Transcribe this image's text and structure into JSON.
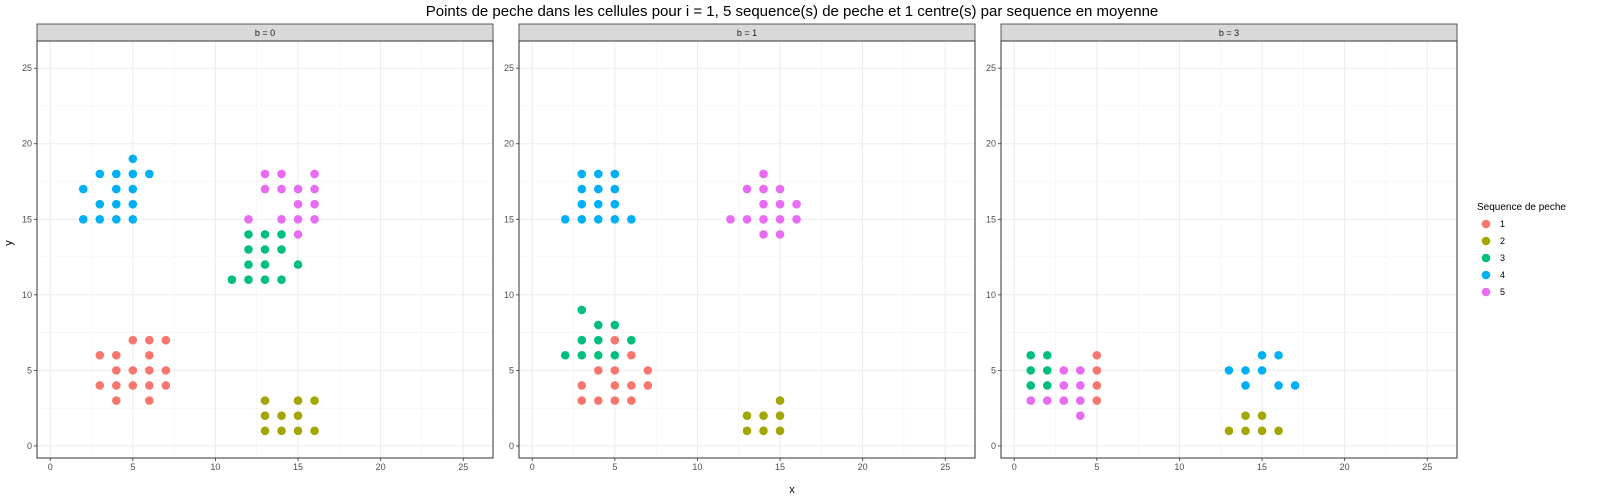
{
  "chart_data": {
    "type": "scatter",
    "title": "Points de peche dans les cellules pour i = 1, 5 sequence(s) de peche et 1 centre(s) par sequence en moyenne",
    "xlabel": "x",
    "ylabel": "y",
    "xlim": [
      -0.8,
      26.8
    ],
    "ylim": [
      -0.8,
      26.8
    ],
    "xticks": [
      0,
      5,
      10,
      15,
      20,
      25
    ],
    "yticks": [
      0,
      5,
      10,
      15,
      20,
      25
    ],
    "grid": true,
    "legend": {
      "title": "Sequence de peche",
      "placement": "right",
      "entries": [
        {
          "name": "1",
          "color": "#F8766D"
        },
        {
          "name": "2",
          "color": "#A3A500"
        },
        {
          "name": "3",
          "color": "#00BF7D"
        },
        {
          "name": "4",
          "color": "#00B0F6"
        },
        {
          "name": "5",
          "color": "#E76BF3"
        }
      ]
    },
    "panels": [
      {
        "label": "b = 0",
        "series": [
          {
            "name": "1",
            "points": [
              [
                3,
                6
              ],
              [
                4,
                6
              ],
              [
                5,
                7
              ],
              [
                6,
                7
              ],
              [
                7,
                7
              ],
              [
                6,
                6
              ],
              [
                4,
                5
              ],
              [
                5,
                5
              ],
              [
                6,
                5
              ],
              [
                7,
                5
              ],
              [
                3,
                4
              ],
              [
                4,
                4
              ],
              [
                5,
                4
              ],
              [
                6,
                4
              ],
              [
                7,
                4
              ],
              [
                4,
                3
              ],
              [
                6,
                3
              ]
            ]
          },
          {
            "name": "2",
            "points": [
              [
                13,
                3
              ],
              [
                15,
                3
              ],
              [
                16,
                3
              ],
              [
                13,
                2
              ],
              [
                14,
                2
              ],
              [
                15,
                2
              ],
              [
                13,
                1
              ],
              [
                14,
                1
              ],
              [
                15,
                1
              ],
              [
                16,
                1
              ]
            ]
          },
          {
            "name": "3",
            "points": [
              [
                12,
                14
              ],
              [
                13,
                14
              ],
              [
                14,
                14
              ],
              [
                12,
                13
              ],
              [
                13,
                13
              ],
              [
                14,
                13
              ],
              [
                12,
                12
              ],
              [
                13,
                12
              ],
              [
                15,
                12
              ],
              [
                11,
                11
              ],
              [
                12,
                11
              ],
              [
                13,
                11
              ],
              [
                14,
                11
              ]
            ]
          },
          {
            "name": "4",
            "points": [
              [
                5,
                19
              ],
              [
                3,
                18
              ],
              [
                4,
                18
              ],
              [
                5,
                18
              ],
              [
                6,
                18
              ],
              [
                2,
                17
              ],
              [
                4,
                17
              ],
              [
                5,
                17
              ],
              [
                3,
                16
              ],
              [
                4,
                16
              ],
              [
                5,
                16
              ],
              [
                2,
                15
              ],
              [
                3,
                15
              ],
              [
                4,
                15
              ],
              [
                5,
                15
              ]
            ]
          },
          {
            "name": "5",
            "points": [
              [
                13,
                18
              ],
              [
                14,
                18
              ],
              [
                16,
                18
              ],
              [
                13,
                17
              ],
              [
                14,
                17
              ],
              [
                15,
                17
              ],
              [
                16,
                17
              ],
              [
                15,
                16
              ],
              [
                16,
                16
              ],
              [
                12,
                15
              ],
              [
                14,
                15
              ],
              [
                15,
                15
              ],
              [
                16,
                15
              ],
              [
                15,
                14
              ]
            ]
          }
        ]
      },
      {
        "label": "b = 1",
        "series": [
          {
            "name": "1",
            "points": [
              [
                5,
                7
              ],
              [
                6,
                6
              ],
              [
                4,
                5
              ],
              [
                5,
                5
              ],
              [
                7,
                5
              ],
              [
                3,
                4
              ],
              [
                5,
                4
              ],
              [
                6,
                4
              ],
              [
                7,
                4
              ],
              [
                3,
                3
              ],
              [
                4,
                3
              ],
              [
                5,
                3
              ],
              [
                6,
                3
              ]
            ]
          },
          {
            "name": "2",
            "points": [
              [
                15,
                3
              ],
              [
                13,
                2
              ],
              [
                14,
                2
              ],
              [
                15,
                2
              ],
              [
                13,
                1
              ],
              [
                14,
                1
              ],
              [
                15,
                1
              ]
            ]
          },
          {
            "name": "3",
            "points": [
              [
                3,
                9
              ],
              [
                4,
                8
              ],
              [
                5,
                8
              ],
              [
                3,
                7
              ],
              [
                4,
                7
              ],
              [
                6,
                7
              ],
              [
                2,
                6
              ],
              [
                3,
                6
              ],
              [
                4,
                6
              ],
              [
                5,
                6
              ]
            ]
          },
          {
            "name": "4",
            "points": [
              [
                3,
                18
              ],
              [
                4,
                18
              ],
              [
                5,
                18
              ],
              [
                3,
                17
              ],
              [
                4,
                17
              ],
              [
                5,
                17
              ],
              [
                3,
                16
              ],
              [
                4,
                16
              ],
              [
                5,
                16
              ],
              [
                2,
                15
              ],
              [
                3,
                15
              ],
              [
                4,
                15
              ],
              [
                5,
                15
              ],
              [
                6,
                15
              ]
            ]
          },
          {
            "name": "5",
            "points": [
              [
                14,
                18
              ],
              [
                13,
                17
              ],
              [
                14,
                17
              ],
              [
                15,
                17
              ],
              [
                14,
                16
              ],
              [
                15,
                16
              ],
              [
                16,
                16
              ],
              [
                12,
                15
              ],
              [
                13,
                15
              ],
              [
                14,
                15
              ],
              [
                15,
                15
              ],
              [
                16,
                15
              ],
              [
                14,
                14
              ],
              [
                15,
                14
              ]
            ]
          }
        ]
      },
      {
        "label": "b = 3",
        "series": [
          {
            "name": "1",
            "points": [
              [
                5,
                6
              ],
              [
                5,
                5
              ],
              [
                5,
                4
              ],
              [
                5,
                3
              ]
            ]
          },
          {
            "name": "2",
            "points": [
              [
                14,
                2
              ],
              [
                15,
                2
              ],
              [
                13,
                1
              ],
              [
                14,
                1
              ],
              [
                15,
                1
              ],
              [
                16,
                1
              ]
            ]
          },
          {
            "name": "3",
            "points": [
              [
                1,
                6
              ],
              [
                2,
                6
              ],
              [
                1,
                5
              ],
              [
                2,
                5
              ],
              [
                1,
                4
              ],
              [
                2,
                4
              ]
            ]
          },
          {
            "name": "4",
            "points": [
              [
                15,
                6
              ],
              [
                16,
                6
              ],
              [
                13,
                5
              ],
              [
                14,
                5
              ],
              [
                15,
                5
              ],
              [
                14,
                4
              ],
              [
                16,
                4
              ],
              [
                17,
                4
              ]
            ]
          },
          {
            "name": "5",
            "points": [
              [
                3,
                5
              ],
              [
                4,
                5
              ],
              [
                3,
                4
              ],
              [
                4,
                4
              ],
              [
                1,
                3
              ],
              [
                2,
                3
              ],
              [
                3,
                3
              ],
              [
                4,
                3
              ],
              [
                4,
                2
              ]
            ]
          }
        ]
      }
    ]
  }
}
